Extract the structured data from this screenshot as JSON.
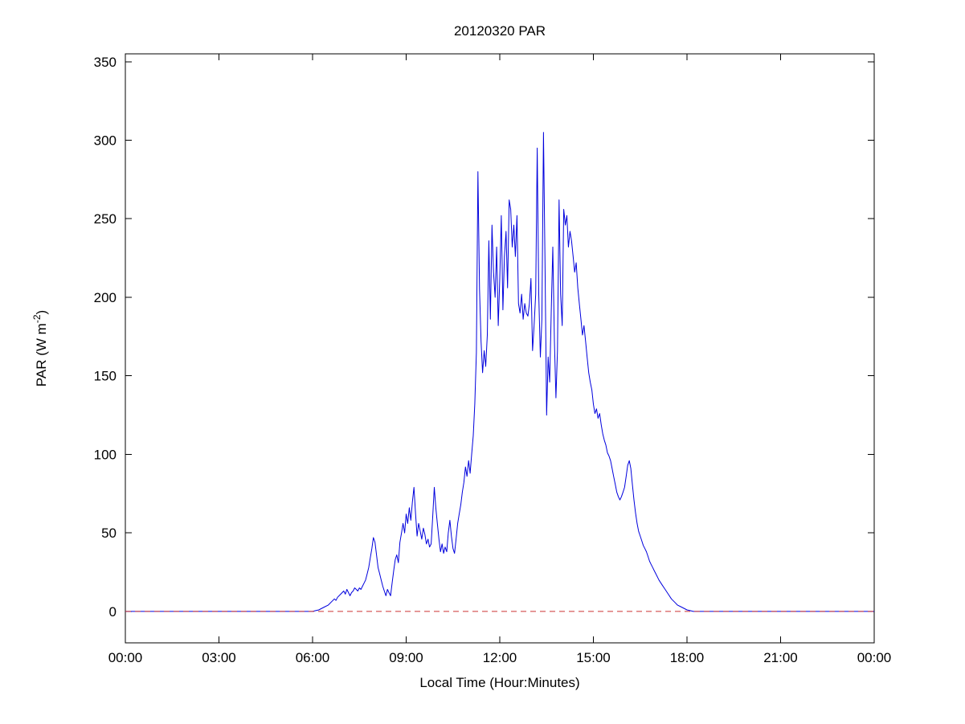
{
  "chart_data": {
    "type": "line",
    "title": "20120320 PAR",
    "xlabel": "Local Time (Hour:Minutes)",
    "ylabel": "PAR (W m-2)",
    "ylabel_parts": {
      "base": "PAR (W m",
      "sup": "-2",
      "close": ")"
    },
    "xlim": [
      0,
      24
    ],
    "ylim": [
      -20,
      355
    ],
    "x_ticks": [
      0,
      3,
      6,
      9,
      12,
      15,
      18,
      21,
      24
    ],
    "x_tick_labels": [
      "00:00",
      "03:00",
      "06:00",
      "09:00",
      "12:00",
      "15:00",
      "18:00",
      "21:00",
      "00:00"
    ],
    "y_ticks": [
      0,
      50,
      100,
      150,
      200,
      250,
      300,
      350
    ],
    "y_tick_labels": [
      "0",
      "50",
      "100",
      "150",
      "200",
      "250",
      "300",
      "350"
    ],
    "grid": false,
    "legend": null,
    "colors": {
      "par_line": "#0000dd",
      "zero_line": "#cc3333",
      "axes": "#000000",
      "background": "#ffffff"
    },
    "series": [
      {
        "name": "PAR",
        "id": "par-series-line",
        "color": "#0000dd",
        "style": "solid",
        "x": [
          0,
          1,
          2,
          3,
          4,
          5,
          5.5,
          6.0,
          6.1,
          6.2,
          6.3,
          6.4,
          6.5,
          6.6,
          6.7,
          6.75,
          6.8,
          6.9,
          7.0,
          7.05,
          7.1,
          7.15,
          7.2,
          7.25,
          7.3,
          7.35,
          7.4,
          7.45,
          7.5,
          7.55,
          7.6,
          7.65,
          7.7,
          7.75,
          7.8,
          7.85,
          7.9,
          7.95,
          8.0,
          8.05,
          8.1,
          8.15,
          8.2,
          8.25,
          8.3,
          8.35,
          8.4,
          8.45,
          8.5,
          8.55,
          8.6,
          8.65,
          8.7,
          8.75,
          8.8,
          8.85,
          8.9,
          8.95,
          9.0,
          9.05,
          9.1,
          9.15,
          9.2,
          9.25,
          9.3,
          9.35,
          9.4,
          9.45,
          9.5,
          9.55,
          9.6,
          9.65,
          9.7,
          9.75,
          9.8,
          9.85,
          9.9,
          9.95,
          10.0,
          10.05,
          10.1,
          10.15,
          10.2,
          10.25,
          10.3,
          10.35,
          10.4,
          10.45,
          10.5,
          10.55,
          10.6,
          10.65,
          10.7,
          10.75,
          10.8,
          10.85,
          10.9,
          10.95,
          11.0,
          11.05,
          11.1,
          11.15,
          11.2,
          11.25,
          11.3,
          11.35,
          11.4,
          11.45,
          11.5,
          11.55,
          11.6,
          11.65,
          11.7,
          11.75,
          11.8,
          11.85,
          11.9,
          11.95,
          12.0,
          12.05,
          12.1,
          12.15,
          12.2,
          12.25,
          12.3,
          12.35,
          12.4,
          12.45,
          12.5,
          12.55,
          12.6,
          12.65,
          12.7,
          12.75,
          12.8,
          12.85,
          12.9,
          12.95,
          13.0,
          13.05,
          13.1,
          13.15,
          13.2,
          13.25,
          13.3,
          13.35,
          13.4,
          13.45,
          13.5,
          13.55,
          13.6,
          13.65,
          13.7,
          13.75,
          13.8,
          13.85,
          13.9,
          13.95,
          14.0,
          14.05,
          14.1,
          14.15,
          14.2,
          14.25,
          14.3,
          14.35,
          14.4,
          14.45,
          14.5,
          14.55,
          14.6,
          14.65,
          14.7,
          14.75,
          14.8,
          14.85,
          14.9,
          14.95,
          15.0,
          15.05,
          15.1,
          15.15,
          15.2,
          15.25,
          15.3,
          15.35,
          15.4,
          15.45,
          15.5,
          15.55,
          15.6,
          15.65,
          15.7,
          15.75,
          15.8,
          15.85,
          15.9,
          15.95,
          16.0,
          16.05,
          16.1,
          16.15,
          16.2,
          16.25,
          16.3,
          16.35,
          16.4,
          16.45,
          16.5,
          16.55,
          16.6,
          16.65,
          16.7,
          16.75,
          16.8,
          16.85,
          16.9,
          16.95,
          17.0,
          17.1,
          17.2,
          17.3,
          17.4,
          17.5,
          17.6,
          17.7,
          17.8,
          17.9,
          18.0,
          18.1,
          18.2,
          18.5,
          19,
          20,
          21,
          22,
          23,
          24
        ],
        "y": [
          0,
          0,
          0,
          0,
          0,
          0,
          0,
          0,
          0.5,
          1,
          2,
          3,
          4,
          6,
          8,
          7,
          9,
          11,
          13,
          11,
          14,
          12,
          10,
          12,
          13,
          15,
          14,
          13,
          15,
          14,
          16,
          18,
          20,
          24,
          28,
          34,
          40,
          47,
          44,
          36,
          28,
          24,
          20,
          16,
          13,
          10,
          14,
          12,
          10,
          18,
          26,
          33,
          36,
          31,
          44,
          50,
          56,
          50,
          62,
          56,
          66,
          58,
          70,
          79,
          62,
          48,
          56,
          51,
          46,
          53,
          49,
          43,
          46,
          41,
          43,
          60,
          79,
          66,
          56,
          46,
          38,
          43,
          37,
          41,
          38,
          50,
          58,
          48,
          40,
          37,
          46,
          56,
          62,
          68,
          76,
          82,
          92,
          86,
          96,
          88,
          100,
          112,
          132,
          165,
          280,
          205,
          172,
          152,
          166,
          156,
          176,
          236,
          186,
          246,
          216,
          200,
          232,
          182,
          212,
          252,
          192,
          226,
          242,
          206,
          262,
          256,
          232,
          246,
          226,
          252,
          196,
          190,
          202,
          186,
          196,
          190,
          188,
          196,
          212,
          166,
          182,
          202,
          295,
          202,
          162,
          186,
          305,
          222,
          125,
          162,
          146,
          192,
          232,
          172,
          136,
          166,
          262,
          202,
          182,
          256,
          246,
          252,
          232,
          242,
          236,
          226,
          216,
          222,
          206,
          196,
          186,
          176,
          182,
          172,
          162,
          152,
          146,
          141,
          132,
          126,
          129,
          123,
          126,
          119,
          113,
          109,
          106,
          101,
          99,
          96,
          91,
          86,
          81,
          76,
          73,
          71,
          73,
          76,
          79,
          86,
          93,
          96,
          91,
          81,
          71,
          63,
          56,
          51,
          48,
          45,
          42,
          40,
          38,
          35,
          32,
          30,
          28,
          26,
          24,
          20,
          17,
          14,
          11,
          8,
          6,
          4,
          3,
          2,
          1,
          0.5,
          0,
          0,
          0,
          0,
          0,
          0,
          0,
          0
        ]
      },
      {
        "name": "zero reference",
        "id": "zero-reference-line",
        "color": "#cc3333",
        "style": "dashed",
        "x": [
          0,
          24
        ],
        "y": [
          0,
          0
        ]
      }
    ]
  }
}
